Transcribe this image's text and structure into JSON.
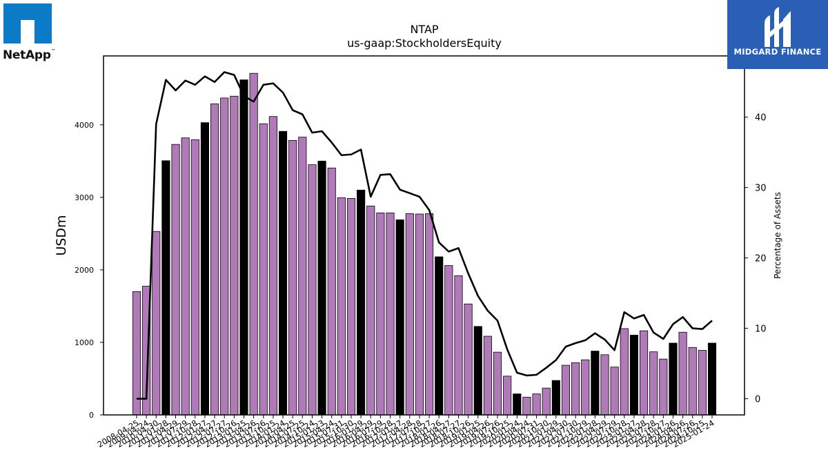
{
  "logos": {
    "left_text": "NetApp",
    "left_mark": "™",
    "right_text": "MIDGARD FINANCE",
    "left_color": "#0b7bc7",
    "right_color": "#2a5fb5"
  },
  "chart_data": {
    "type": "bar",
    "title": "NTAP",
    "subtitle": "us-gaap:StockholdersEquity",
    "ylabel": "USDm",
    "y2label": "Percentage of Assets",
    "ylim": [
      0,
      4950
    ],
    "y2lim": [
      -2.3,
      48.7
    ],
    "yticks": [
      0,
      1000,
      2000,
      3000,
      4000
    ],
    "y2ticks": [
      0,
      10,
      20,
      30,
      40
    ],
    "colors": {
      "bar": "#b07ab8",
      "bar_highlight": "#000000",
      "line": "#000000"
    },
    "categories": [
      "2008-04-25",
      "2009-04-24",
      "2010-04-30",
      "2011-01-28",
      "2011-04-29",
      "2011-07-29",
      "2011-10-28",
      "2012-01-27",
      "2012-04-27",
      "2012-07-27",
      "2012-10-26",
      "2013-01-25",
      "2013-04-26",
      "2013-07-26",
      "2013-10-25",
      "2014-01-24",
      "2014-04-25",
      "2014-07-25",
      "2014-10-24",
      "2015-01-23",
      "2015-04-24",
      "2015-07-31",
      "2015-10-30",
      "2016-01-29",
      "2016-04-29",
      "2016-07-29",
      "2016-10-28",
      "2017-01-27",
      "2017-04-28",
      "2017-07-28",
      "2017-10-27",
      "2018-01-26",
      "2018-04-27",
      "2018-07-27",
      "2018-10-26",
      "2019-01-25",
      "2019-04-26",
      "2019-07-26",
      "2019-10-25",
      "2020-01-24",
      "2020-04-24",
      "2020-07-31",
      "2020-10-30",
      "2021-01-29",
      "2021-04-30",
      "2021-07-30",
      "2021-10-29",
      "2022-01-28",
      "2022-04-29",
      "2022-07-29",
      "2022-10-28",
      "2023-01-27",
      "2023-04-28",
      "2023-07-28",
      "2023-10-27",
      "2024-01-26",
      "2024-04-26",
      "2024-07-26",
      "2024-10-25",
      "2025-01-24"
    ],
    "highlighted": [
      false,
      false,
      false,
      true,
      false,
      false,
      false,
      true,
      false,
      false,
      false,
      true,
      false,
      false,
      false,
      true,
      false,
      false,
      false,
      true,
      false,
      false,
      false,
      true,
      false,
      false,
      false,
      true,
      false,
      false,
      false,
      true,
      false,
      false,
      false,
      true,
      false,
      false,
      false,
      true,
      false,
      false,
      false,
      true,
      false,
      false,
      false,
      true,
      false,
      false,
      false,
      true,
      false,
      false,
      false,
      true,
      false,
      false,
      false,
      true
    ],
    "series": [
      {
        "name": "USDm",
        "type": "bar",
        "values": [
          1700,
          1775,
          2530,
          3505,
          3730,
          3820,
          3795,
          4030,
          4290,
          4370,
          4395,
          4620,
          4710,
          4015,
          4115,
          3910,
          3785,
          3830,
          3450,
          3500,
          3405,
          2995,
          2985,
          3100,
          2880,
          2785,
          2785,
          2690,
          2775,
          2770,
          2775,
          2180,
          2060,
          1920,
          1530,
          1220,
          1085,
          865,
          535,
          290,
          245,
          290,
          370,
          475,
          685,
          720,
          760,
          880,
          830,
          660,
          1190,
          1100,
          1160,
          870,
          770,
          990,
          1140,
          930,
          890,
          990
        ]
      },
      {
        "name": "Percentage of Assets",
        "type": "line",
        "axis": "right",
        "values": [
          0,
          0,
          39,
          45.3,
          43.8,
          45.2,
          44.6,
          45.8,
          45.0,
          46.4,
          46.0,
          43.0,
          42.2,
          44.6,
          44.8,
          43.5,
          41.0,
          40.4,
          37.8,
          38.0,
          36.4,
          34.6,
          34.7,
          35.4,
          28.7,
          31.8,
          31.9,
          29.7,
          29.2,
          28.7,
          26.8,
          22.2,
          20.9,
          21.4,
          17.8,
          14.6,
          12.5,
          11.1,
          7.0,
          3.7,
          3.3,
          3.4,
          4.4,
          5.5,
          7.4,
          7.9,
          8.3,
          9.3,
          8.4,
          6.9,
          12.3,
          11.4,
          11.9,
          9.4,
          8.5,
          10.6,
          11.6,
          10.0,
          9.9,
          11.1
        ]
      }
    ],
    "grid": false,
    "legend": "none"
  }
}
